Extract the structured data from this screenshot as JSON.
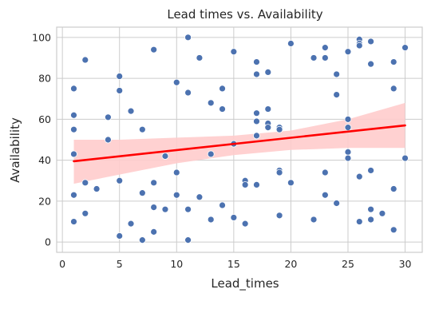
{
  "chart_data": {
    "type": "scatter",
    "title": "Lead times vs. Availability",
    "xlabel": "Lead_times",
    "ylabel": "Availability",
    "xlim": [
      -0.5,
      31.5
    ],
    "ylim": [
      -5,
      105
    ],
    "xticks": [
      0,
      5,
      10,
      15,
      20,
      25,
      30
    ],
    "yticks": [
      0,
      20,
      40,
      60,
      80,
      100
    ],
    "grid": true,
    "point_color": "#4c72b0",
    "regression": {
      "color": "#ff0000",
      "band_color": "#ffcccc",
      "line": [
        [
          1,
          39.5
        ],
        [
          30,
          57
        ]
      ],
      "ci_upper": [
        [
          1,
          50
        ],
        [
          5,
          50
        ],
        [
          10,
          51
        ],
        [
          15,
          52
        ],
        [
          20,
          54.5
        ],
        [
          25,
          60
        ],
        [
          30,
          68
        ]
      ],
      "ci_lower": [
        [
          1,
          28.5
        ],
        [
          5,
          33
        ],
        [
          10,
          38.5
        ],
        [
          15,
          42.5
        ],
        [
          20,
          45
        ],
        [
          25,
          46
        ],
        [
          30,
          46
        ]
      ]
    },
    "points": [
      [
        1,
        75
      ],
      [
        1,
        62
      ],
      [
        1,
        55
      ],
      [
        1,
        43
      ],
      [
        1,
        23
      ],
      [
        1,
        10
      ],
      [
        2,
        89
      ],
      [
        2,
        29
      ],
      [
        2,
        14
      ],
      [
        3,
        26
      ],
      [
        4,
        61
      ],
      [
        4,
        50
      ],
      [
        5,
        81
      ],
      [
        5,
        74
      ],
      [
        5,
        30
      ],
      [
        5,
        3
      ],
      [
        6,
        64
      ],
      [
        6,
        9
      ],
      [
        7,
        55
      ],
      [
        7,
        24
      ],
      [
        7,
        1
      ],
      [
        8,
        94
      ],
      [
        8,
        29
      ],
      [
        8,
        17
      ],
      [
        8,
        5
      ],
      [
        9,
        42
      ],
      [
        9,
        16
      ],
      [
        10,
        78
      ],
      [
        10,
        34
      ],
      [
        10,
        23
      ],
      [
        11,
        100
      ],
      [
        11,
        73
      ],
      [
        11,
        16
      ],
      [
        11,
        1
      ],
      [
        12,
        90
      ],
      [
        12,
        22
      ],
      [
        13,
        68
      ],
      [
        13,
        43
      ],
      [
        13,
        11
      ],
      [
        14,
        75
      ],
      [
        14,
        65
      ],
      [
        14,
        18
      ],
      [
        15,
        93
      ],
      [
        15,
        48
      ],
      [
        15,
        12
      ],
      [
        16,
        30
      ],
      [
        16,
        28
      ],
      [
        16,
        9
      ],
      [
        17,
        88
      ],
      [
        17,
        82
      ],
      [
        17,
        63
      ],
      [
        17,
        59
      ],
      [
        17,
        52
      ],
      [
        17,
        28
      ],
      [
        18,
        83
      ],
      [
        18,
        65
      ],
      [
        18,
        58
      ],
      [
        18,
        56
      ],
      [
        19,
        56
      ],
      [
        19,
        55
      ],
      [
        19,
        35
      ],
      [
        19,
        34
      ],
      [
        19,
        13
      ],
      [
        20,
        97
      ],
      [
        20,
        29
      ],
      [
        22,
        90
      ],
      [
        22,
        11
      ],
      [
        23,
        95
      ],
      [
        23,
        90
      ],
      [
        23,
        34
      ],
      [
        23,
        23
      ],
      [
        24,
        82
      ],
      [
        24,
        72
      ],
      [
        24,
        19
      ],
      [
        25,
        93
      ],
      [
        25,
        60
      ],
      [
        25,
        56
      ],
      [
        25,
        44
      ],
      [
        25,
        41
      ],
      [
        26,
        99
      ],
      [
        26,
        97
      ],
      [
        26,
        96
      ],
      [
        26,
        32
      ],
      [
        26,
        10
      ],
      [
        27,
        98
      ],
      [
        27,
        87
      ],
      [
        27,
        35
      ],
      [
        27,
        16
      ],
      [
        27,
        11
      ],
      [
        28,
        14
      ],
      [
        29,
        88
      ],
      [
        29,
        75
      ],
      [
        29,
        26
      ],
      [
        29,
        6
      ],
      [
        30,
        95
      ],
      [
        30,
        41
      ]
    ]
  }
}
